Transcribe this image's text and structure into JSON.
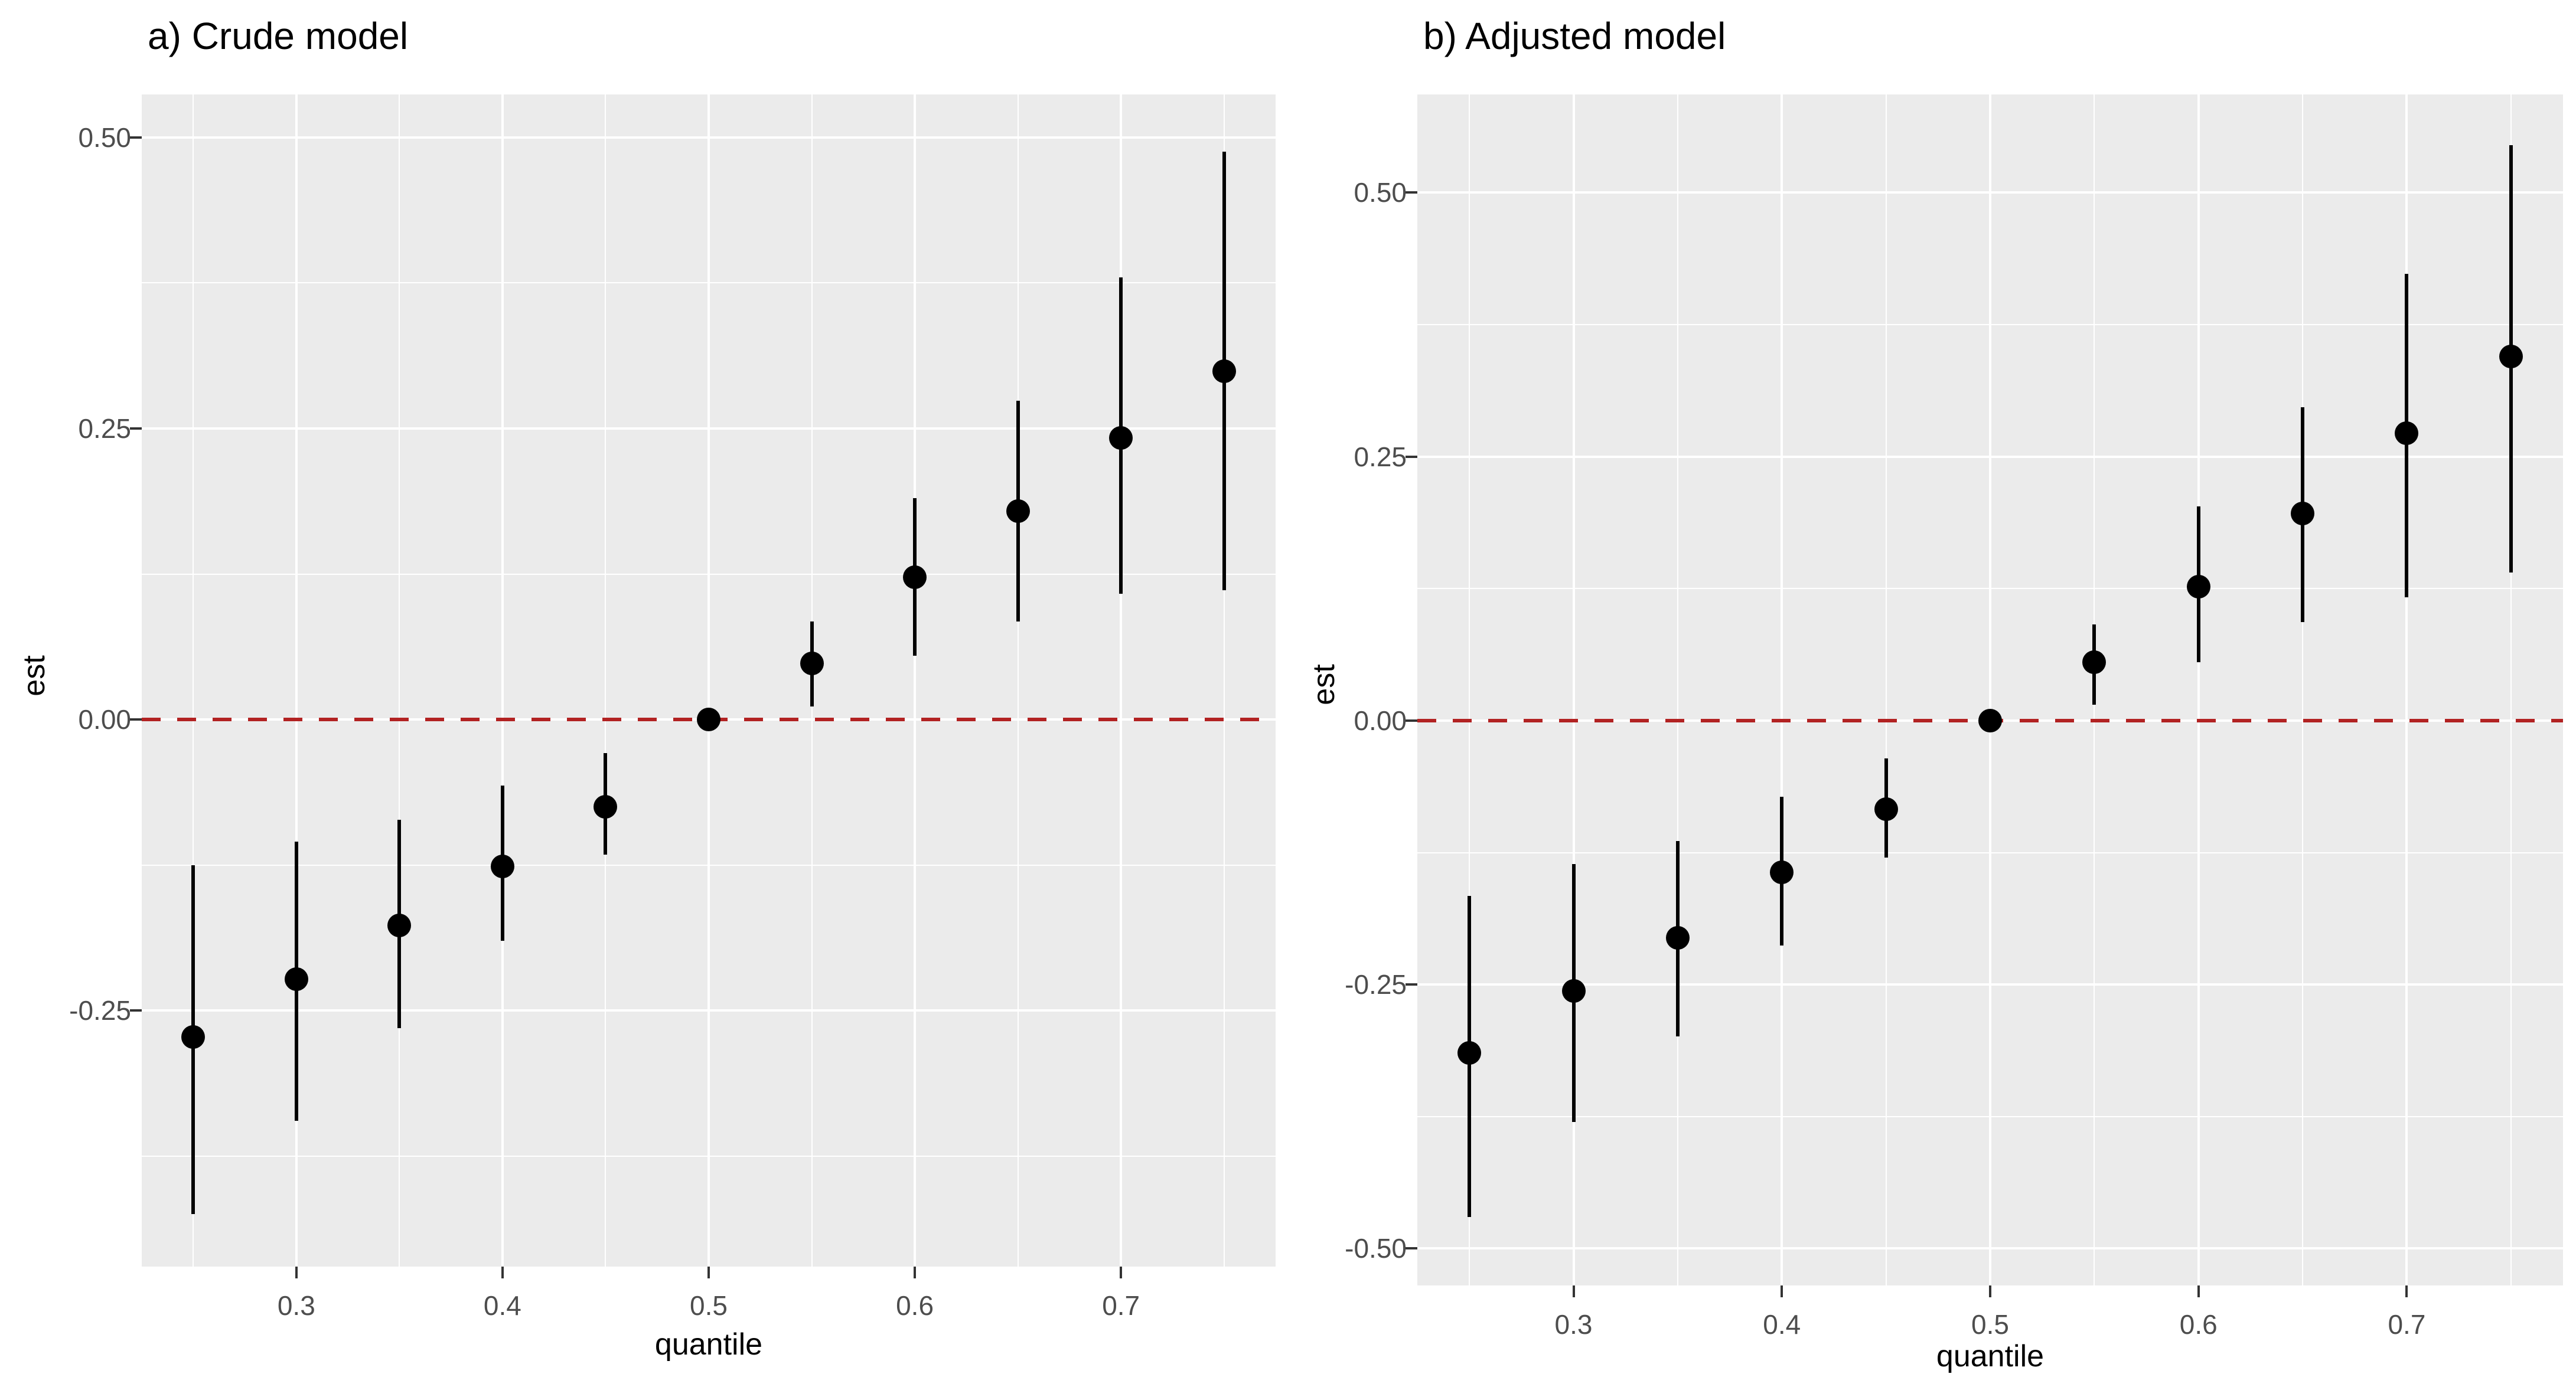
{
  "figure": {
    "colors": {
      "background": "#ffffff",
      "panel_background": "#ebebeb",
      "gridline": "#ffffff",
      "reference_line": "#b22222",
      "point": "#000000",
      "tick_text": "#4d4d4d",
      "axis_title_text": "#000000",
      "tick_mark": "#333333"
    }
  },
  "chart_data": [
    {
      "type": "pointrange",
      "panel": "a",
      "title": "a) Crude model",
      "xlabel": "quantile",
      "ylabel": "est",
      "xlim": [
        0.225,
        0.775
      ],
      "ylim": [
        -0.47,
        0.537
      ],
      "grid": "on",
      "x_ticks": {
        "values": [
          0.3,
          0.4,
          0.5,
          0.6,
          0.7
        ],
        "labels": [
          "0.3",
          "0.4",
          "0.5",
          "0.6",
          "0.7"
        ]
      },
      "y_ticks": {
        "values": [
          0.5,
          0.25,
          0.0,
          -0.25
        ],
        "labels": [
          "0.50",
          "0.25",
          "0.00",
          "-0.25"
        ]
      },
      "ref_line": {
        "y": 0,
        "style": "dashed",
        "color": "#b22222"
      },
      "series": [
        {
          "name": "estimate",
          "x": [
            0.25,
            0.3,
            0.35,
            0.4,
            0.45,
            0.5,
            0.55,
            0.6,
            0.65,
            0.7,
            0.75
          ],
          "est": [
            -0.273,
            -0.223,
            -0.177,
            -0.126,
            -0.075,
            0.0,
            0.048,
            0.122,
            0.179,
            0.242,
            0.299
          ],
          "lower": [
            -0.425,
            -0.345,
            -0.265,
            -0.19,
            -0.116,
            0.0,
            0.011,
            0.055,
            0.084,
            0.108,
            0.111
          ],
          "upper": [
            -0.125,
            -0.105,
            -0.086,
            -0.057,
            -0.029,
            0.0,
            0.084,
            0.19,
            0.274,
            0.38,
            0.488
          ]
        }
      ]
    },
    {
      "type": "pointrange",
      "panel": "b",
      "title": "b) Adjusted model",
      "xlabel": "quantile",
      "ylabel": "est",
      "xlim": [
        0.225,
        0.775
      ],
      "ylim": [
        -0.535,
        0.593
      ],
      "grid": "on",
      "x_ticks": {
        "values": [
          0.3,
          0.4,
          0.5,
          0.6,
          0.7
        ],
        "labels": [
          "0.3",
          "0.4",
          "0.5",
          "0.6",
          "0.7"
        ]
      },
      "y_ticks": {
        "values": [
          0.5,
          0.25,
          0.0,
          -0.25,
          -0.5
        ],
        "labels": [
          "0.50",
          "0.25",
          "0.00",
          "-0.25",
          "-0.50"
        ]
      },
      "ref_line": {
        "y": 0,
        "style": "dashed",
        "color": "#b22222"
      },
      "series": [
        {
          "name": "estimate",
          "x": [
            0.25,
            0.3,
            0.35,
            0.4,
            0.45,
            0.5,
            0.55,
            0.6,
            0.65,
            0.7,
            0.75
          ],
          "est": [
            -0.315,
            -0.256,
            -0.206,
            -0.144,
            -0.084,
            0.0,
            0.055,
            0.127,
            0.196,
            0.272,
            0.345
          ],
          "lower": [
            -0.47,
            -0.38,
            -0.299,
            -0.213,
            -0.13,
            0.0,
            0.015,
            0.055,
            0.093,
            0.117,
            0.14
          ],
          "upper": [
            -0.166,
            -0.136,
            -0.114,
            -0.072,
            -0.036,
            0.0,
            0.091,
            0.203,
            0.297,
            0.423,
            0.545
          ]
        }
      ]
    }
  ]
}
